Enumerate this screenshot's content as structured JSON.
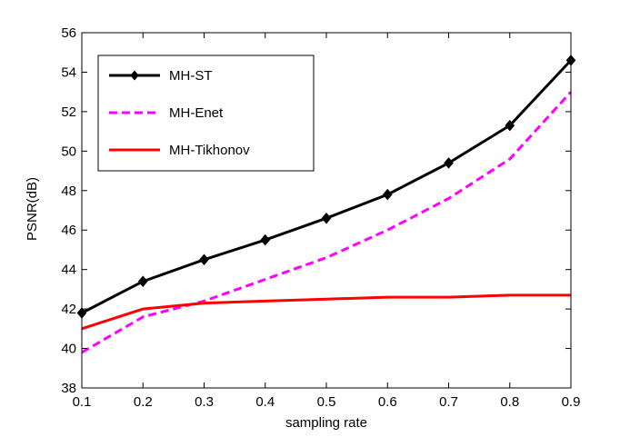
{
  "chart_data": {
    "type": "line",
    "xlabel": "sampling rate",
    "ylabel": "PSNR(dB)",
    "xlim": [
      0.1,
      0.9
    ],
    "ylim": [
      38,
      56
    ],
    "x_ticks": [
      "0.1",
      "0.2",
      "0.3",
      "0.4",
      "0.5",
      "0.6",
      "0.7",
      "0.8",
      "0.9"
    ],
    "y_ticks": [
      "38",
      "40",
      "42",
      "44",
      "46",
      "48",
      "50",
      "52",
      "54",
      "56"
    ],
    "grid": false,
    "legend_position": "top-left",
    "x": [
      0.1,
      0.2,
      0.3,
      0.4,
      0.5,
      0.6,
      0.7,
      0.8,
      0.9
    ],
    "series": [
      {
        "name": "MH-ST",
        "color": "#000000",
        "style": "solid",
        "marker": "diamond",
        "values": [
          41.8,
          43.4,
          44.5,
          45.5,
          46.6,
          47.8,
          49.4,
          51.3,
          54.6
        ]
      },
      {
        "name": "MH-Enet",
        "color": "#ff00ff",
        "style": "dashed",
        "marker": "none",
        "values": [
          39.8,
          41.6,
          42.4,
          43.5,
          44.6,
          46.0,
          47.6,
          49.6,
          53.0
        ]
      },
      {
        "name": "MH-Tikhonov",
        "color": "#ff0000",
        "style": "solid",
        "marker": "none",
        "values": [
          41.0,
          42.0,
          42.3,
          42.4,
          42.5,
          42.6,
          42.6,
          42.7,
          42.7
        ]
      }
    ]
  }
}
